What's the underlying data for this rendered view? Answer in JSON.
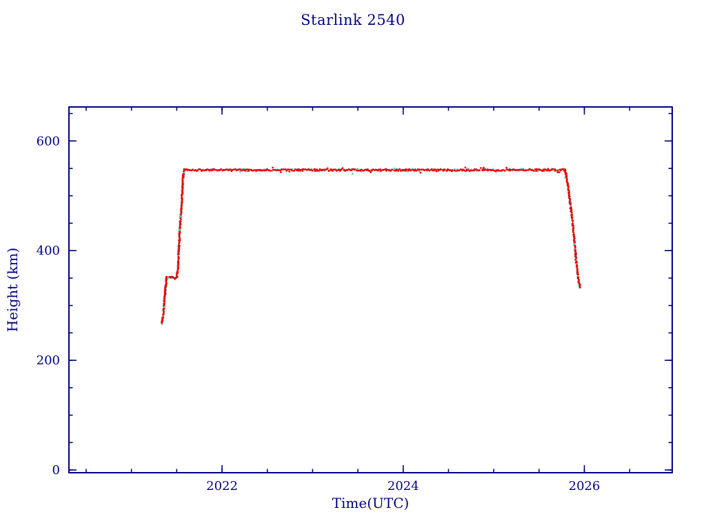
{
  "page_title": "Starlink 2540",
  "chart_data": {
    "type": "scatter",
    "title": "Starlink 2540",
    "xlabel": "Time(UTC)",
    "ylabel": "Height (km)",
    "xlim": [
      2020.31,
      2026.97
    ],
    "ylim": [
      -5,
      662
    ],
    "xticks": [
      2022,
      2024,
      2026
    ],
    "yticks": [
      0,
      200,
      400,
      600
    ],
    "x_minor_step": 0.5,
    "y_minor_step": 50,
    "axis_color": "#000080",
    "background": "#ffffff",
    "series": [
      {
        "name": "tracked-dark-underlay",
        "color": "#6b5b56",
        "marker_px": 2.4,
        "spacing": 3,
        "jitter": 2.2,
        "path": [
          [
            2021.335,
            268
          ],
          [
            2021.345,
            278
          ],
          [
            2021.36,
            300
          ],
          [
            2021.375,
            330
          ],
          [
            2021.385,
            348
          ],
          [
            2021.39,
            351
          ],
          [
            2021.5,
            351
          ],
          [
            2021.512,
            368
          ],
          [
            2021.53,
            428
          ],
          [
            2021.55,
            478
          ],
          [
            2021.572,
            538
          ],
          [
            2021.582,
            547
          ],
          null,
          [
            2025.785,
            547
          ],
          [
            2025.8,
            535
          ],
          [
            2025.83,
            505
          ],
          [
            2025.86,
            465
          ],
          [
            2025.885,
            425
          ],
          [
            2025.905,
            388
          ],
          [
            2025.925,
            358
          ],
          [
            2025.94,
            340
          ],
          [
            2025.952,
            333
          ]
        ]
      },
      {
        "name": "tracked-cyan-underlay",
        "color": "#49cfd4",
        "marker_px": 2.6,
        "spacing": 4,
        "jitter": 2.1,
        "path": [
          [
            2021.335,
            268
          ],
          [
            2021.345,
            278
          ],
          [
            2021.36,
            300
          ],
          [
            2021.375,
            330
          ],
          [
            2021.385,
            348
          ],
          [
            2021.39,
            351
          ],
          [
            2021.5,
            351
          ],
          [
            2021.512,
            368
          ],
          [
            2021.53,
            428
          ],
          [
            2021.55,
            478
          ],
          [
            2021.572,
            538
          ],
          [
            2021.582,
            547
          ],
          [
            2025.785,
            547
          ],
          [
            2025.8,
            535
          ],
          [
            2025.83,
            505
          ],
          [
            2025.86,
            465
          ],
          [
            2025.885,
            425
          ],
          [
            2025.905,
            388
          ],
          [
            2025.925,
            358
          ],
          [
            2025.94,
            340
          ],
          [
            2025.952,
            333
          ]
        ]
      },
      {
        "name": "height-profile-red",
        "color": "#ee0000",
        "marker_px": 2.6,
        "spacing": 1.4,
        "jitter": 1.3,
        "path": [
          [
            2021.335,
            268
          ],
          [
            2021.345,
            278
          ],
          [
            2021.36,
            300
          ],
          [
            2021.375,
            330
          ],
          [
            2021.385,
            348
          ],
          [
            2021.39,
            351
          ],
          [
            2021.5,
            351
          ],
          [
            2021.512,
            368
          ],
          [
            2021.53,
            428
          ],
          [
            2021.55,
            478
          ],
          [
            2021.572,
            538
          ],
          [
            2021.582,
            547
          ],
          [
            2025.785,
            547
          ],
          [
            2025.8,
            535
          ],
          [
            2025.83,
            505
          ],
          [
            2025.86,
            465
          ],
          [
            2025.885,
            425
          ],
          [
            2025.905,
            388
          ],
          [
            2025.925,
            358
          ],
          [
            2025.94,
            340
          ],
          [
            2025.952,
            333
          ]
        ]
      }
    ],
    "extra_points": [
      {
        "name": "cyan-highlight-points",
        "color": "#49cfd4",
        "points": [
          [
            2021.36,
            297
          ],
          [
            2021.405,
            350
          ],
          [
            2021.53,
            438
          ],
          [
            2021.545,
            462
          ],
          [
            2022.2,
            544
          ],
          [
            2025.885,
            412
          ]
        ]
      }
    ]
  }
}
